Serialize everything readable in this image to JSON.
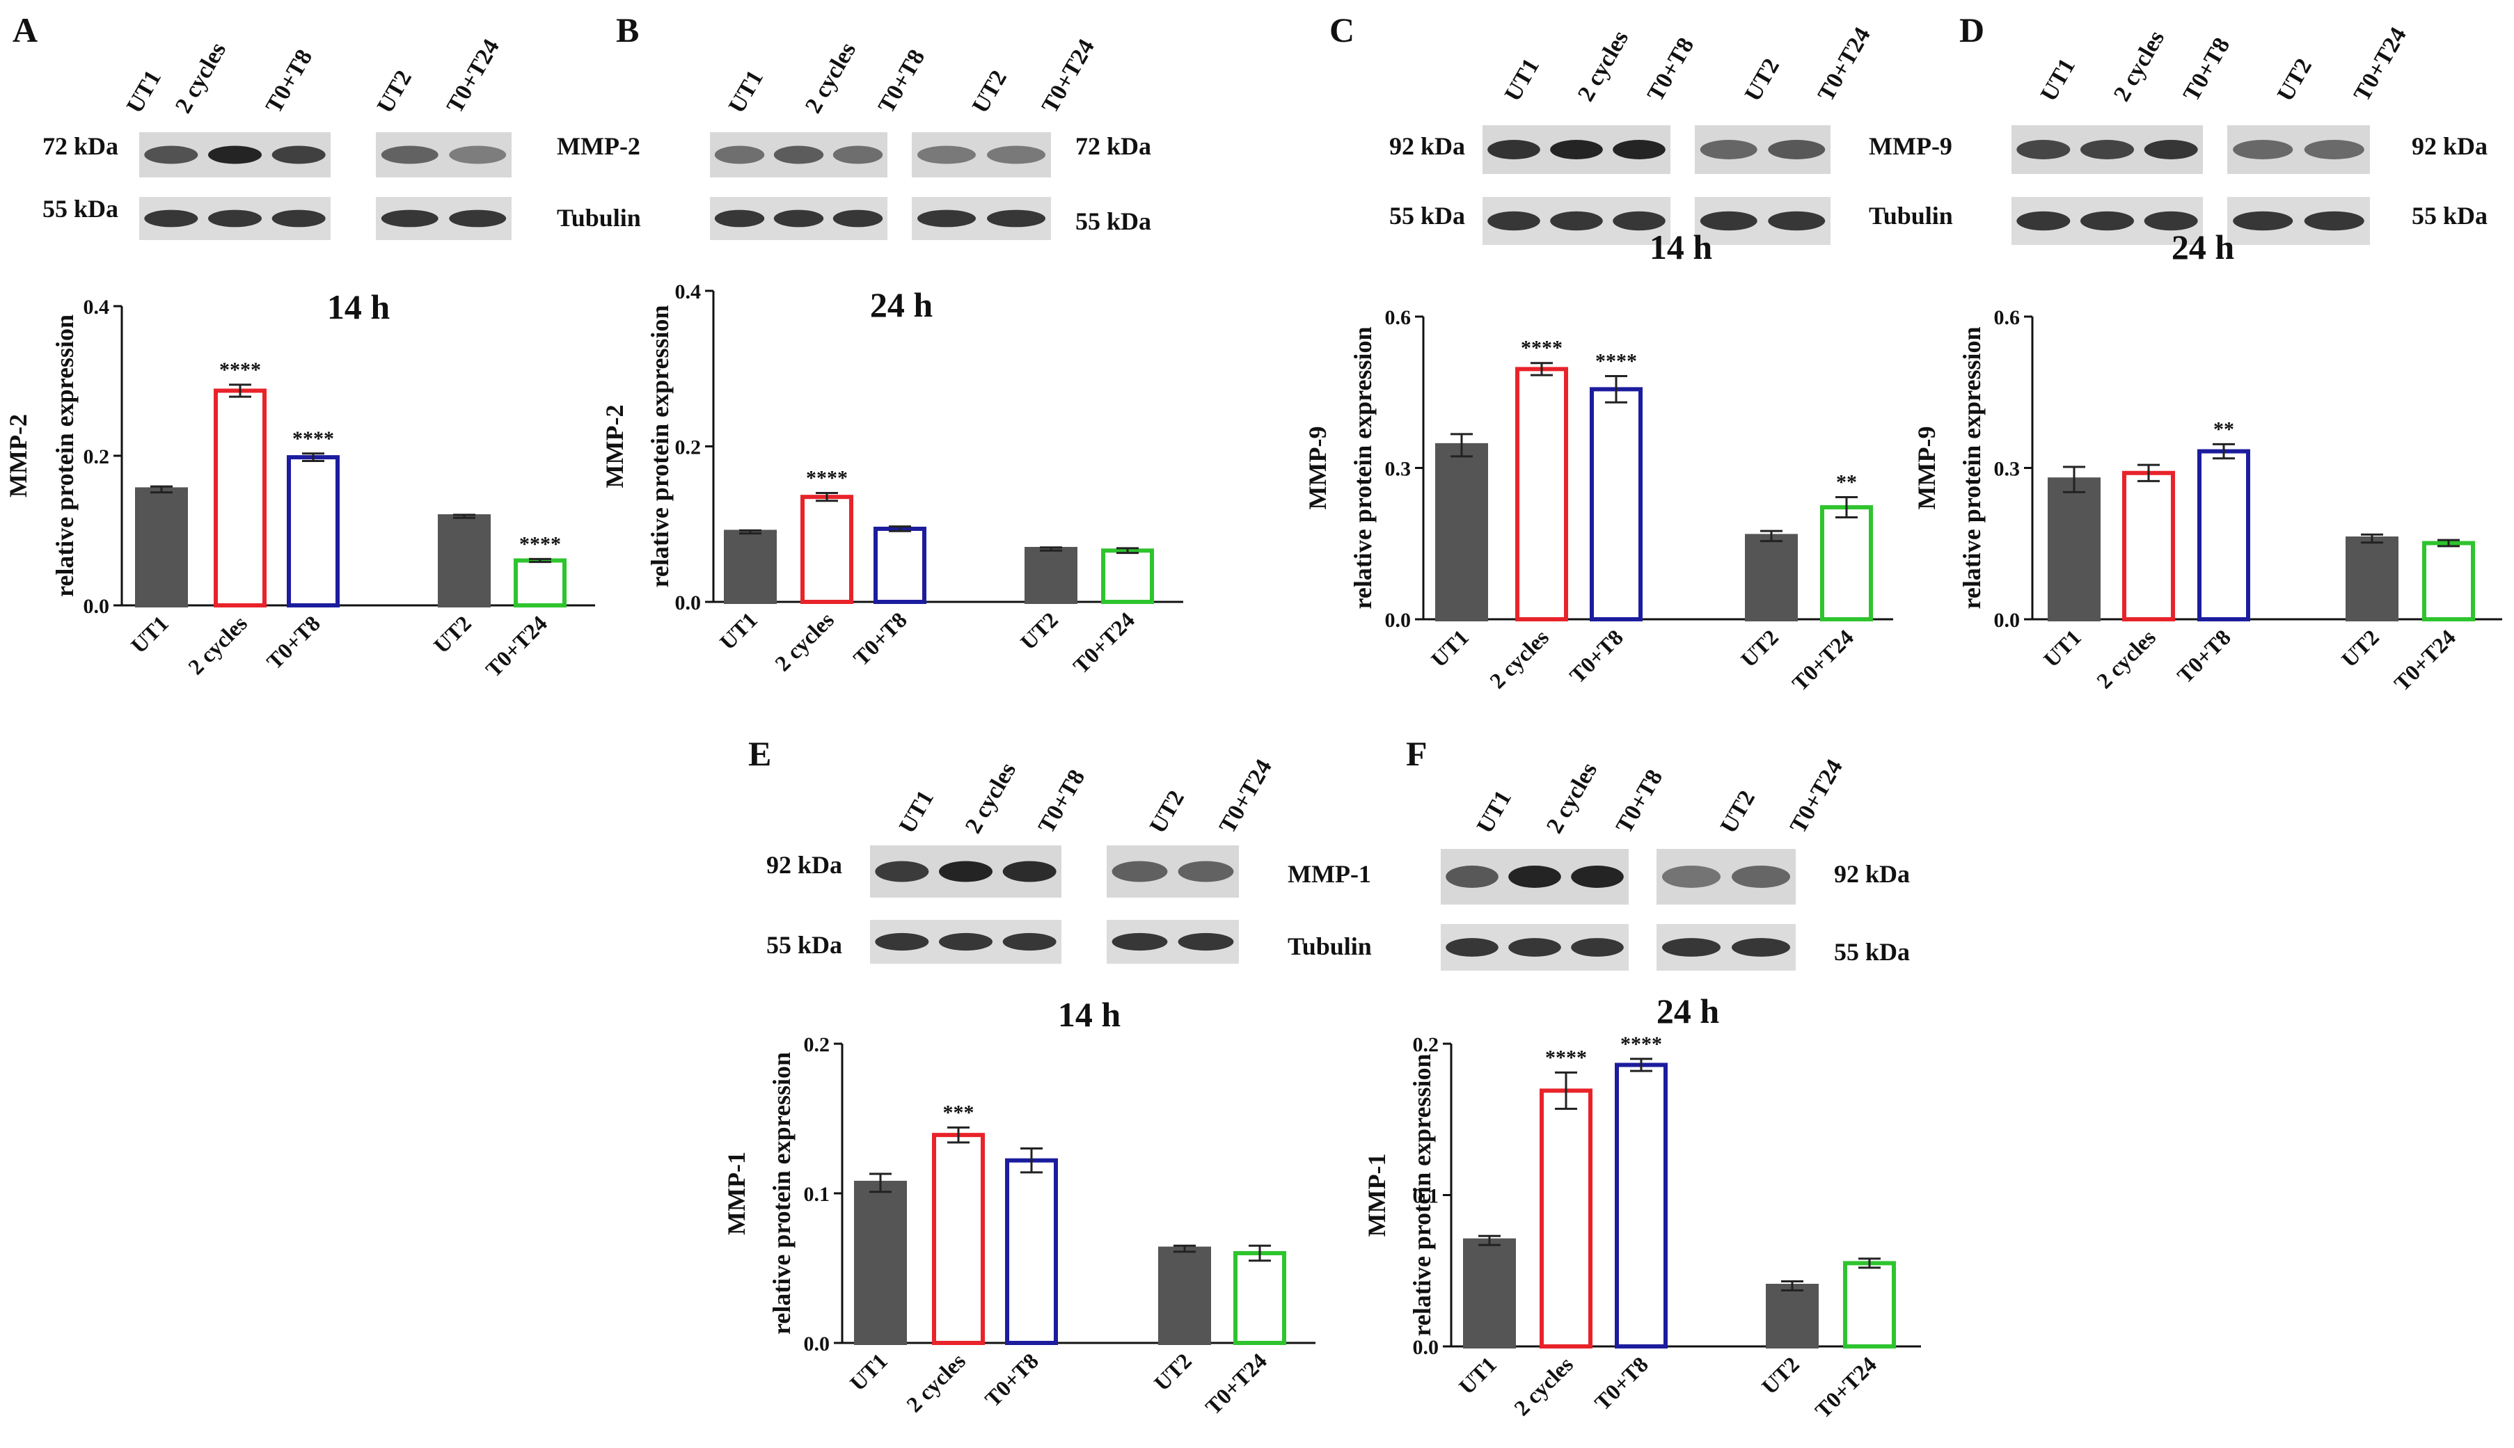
{
  "colors": {
    "dark_bar": "#555555",
    "red": "#e8232a",
    "blue": "#1c1c9e",
    "green": "#2ec42e",
    "axis": "#111111"
  },
  "chart_data": [
    {
      "type": "bar",
      "panel": "A",
      "title": "14 h",
      "ylabel_lines": [
        "MMP-2",
        "relative protein expression"
      ],
      "ylim": [
        0,
        0.4
      ],
      "yticks": [
        "0.0",
        "0.2",
        "0.4"
      ],
      "categories": [
        "UT1",
        "2 cycles",
        "T0+T8",
        "UT2",
        "T0+T24"
      ],
      "values": [
        0.155,
        0.287,
        0.198,
        0.119,
        0.06
      ],
      "errors": [
        0.004,
        0.008,
        0.005,
        0.002,
        0.002
      ],
      "significance": [
        "",
        "****",
        "****",
        "",
        "****"
      ],
      "blot": {
        "lanes_left": [
          "UT1",
          "2 cycles",
          "T0+T8"
        ],
        "lanes_right": [
          "UT2",
          "T0+T24"
        ],
        "kda_top": "72 kDa",
        "kda_bottom": "55 kDa",
        "protein": "MMP-2",
        "loading": "Tubulin"
      }
    },
    {
      "type": "bar",
      "panel": "B",
      "title": "24 h",
      "ylabel_lines": [
        "MMP-2",
        "relative protein expression"
      ],
      "ylim": [
        0,
        0.4
      ],
      "yticks": [
        "0.0",
        "0.2",
        "0.4"
      ],
      "categories": [
        "UT1",
        "2 cycles",
        "T0+T8",
        "UT2",
        "T0+T24"
      ],
      "values": [
        0.09,
        0.135,
        0.094,
        0.068,
        0.066
      ],
      "errors": [
        0.002,
        0.005,
        0.003,
        0.002,
        0.003
      ],
      "significance": [
        "",
        "****",
        "",
        "",
        ""
      ],
      "blot": {
        "lanes_left": [
          "UT1",
          "2 cycles",
          "T0+T8"
        ],
        "lanes_right": [
          "UT2",
          "T0+T24"
        ],
        "kda_top": "72 kDa",
        "kda_bottom": "55 kDa"
      }
    },
    {
      "type": "bar",
      "panel": "C",
      "title": "14 h",
      "ylabel_lines": [
        "MMP-9",
        "relative protein expression"
      ],
      "ylim": [
        0,
        0.6
      ],
      "yticks": [
        "0.0",
        "0.3",
        "0.6"
      ],
      "categories": [
        "UT1",
        "2 cycles",
        "T0+T8",
        "UT2",
        "T0+T24"
      ],
      "values": [
        0.345,
        0.496,
        0.456,
        0.165,
        0.222
      ],
      "errors": [
        0.022,
        0.012,
        0.026,
        0.01,
        0.02
      ],
      "significance": [
        "",
        "****",
        "****",
        "",
        "**"
      ],
      "blot": {
        "lanes_left": [
          "UT1",
          "2 cycles",
          "T0+T8"
        ],
        "lanes_right": [
          "UT2",
          "T0+T24"
        ],
        "kda_top": "92 kDa",
        "kda_bottom": "55 kDa",
        "protein": "MMP-9",
        "loading": "Tubulin"
      }
    },
    {
      "type": "bar",
      "panel": "D",
      "title": "24 h",
      "ylabel_lines": [
        "MMP-9",
        "relative protein expression"
      ],
      "ylim": [
        0,
        0.6
      ],
      "yticks": [
        "0.0",
        "0.3",
        "0.6"
      ],
      "categories": [
        "UT1",
        "2 cycles",
        "T0+T8",
        "UT2",
        "T0+T24"
      ],
      "values": [
        0.277,
        0.29,
        0.333,
        0.16,
        0.151
      ],
      "errors": [
        0.025,
        0.016,
        0.014,
        0.008,
        0.006
      ],
      "significance": [
        "",
        "",
        "**",
        "",
        ""
      ],
      "blot": {
        "lanes_left": [
          "UT1",
          "2 cycles",
          "T0+T8"
        ],
        "lanes_right": [
          "UT2",
          "T0+T24"
        ],
        "kda_top": "92 kDa",
        "kda_bottom": "55 kDa"
      }
    },
    {
      "type": "bar",
      "panel": "E",
      "title": "14 h",
      "ylabel_lines": [
        "MMP-1",
        "relative protein expression"
      ],
      "ylim": [
        0,
        0.2
      ],
      "yticks": [
        "0.0",
        "0.1",
        "0.2"
      ],
      "categories": [
        "UT1",
        "2 cycles",
        "T0+T8",
        "UT2",
        "T0+T24"
      ],
      "values": [
        0.107,
        0.139,
        0.122,
        0.063,
        0.06
      ],
      "errors": [
        0.006,
        0.005,
        0.008,
        0.002,
        0.005
      ],
      "significance": [
        "",
        "***",
        "",
        "",
        ""
      ],
      "blot": {
        "lanes_left": [
          "UT1",
          "2 cycles",
          "T0+T8"
        ],
        "lanes_right": [
          "UT2",
          "T0+T24"
        ],
        "kda_top": "92 kDa",
        "kda_bottom": "55 kDa",
        "protein": "MMP-1",
        "loading": "Tubulin"
      }
    },
    {
      "type": "bar",
      "panel": "F",
      "title": "24 h",
      "ylabel_lines": [
        "MMP-1",
        "relative protein expression"
      ],
      "ylim": [
        0,
        0.2
      ],
      "yticks": [
        "0.0",
        "0.1",
        "0.2"
      ],
      "categories": [
        "UT1",
        "2 cycles",
        "T0+T8",
        "UT2",
        "T0+T24"
      ],
      "values": [
        0.07,
        0.169,
        0.186,
        0.04,
        0.055
      ],
      "errors": [
        0.003,
        0.012,
        0.004,
        0.003,
        0.003
      ],
      "significance": [
        "",
        "****",
        "****",
        "",
        ""
      ],
      "blot": {
        "lanes_left": [
          "UT1",
          "2 cycles",
          "T0+T8"
        ],
        "lanes_right": [
          "UT2",
          "T0+T24"
        ],
        "kda_top": "92 kDa",
        "kda_bottom": "55 kDa"
      }
    }
  ]
}
